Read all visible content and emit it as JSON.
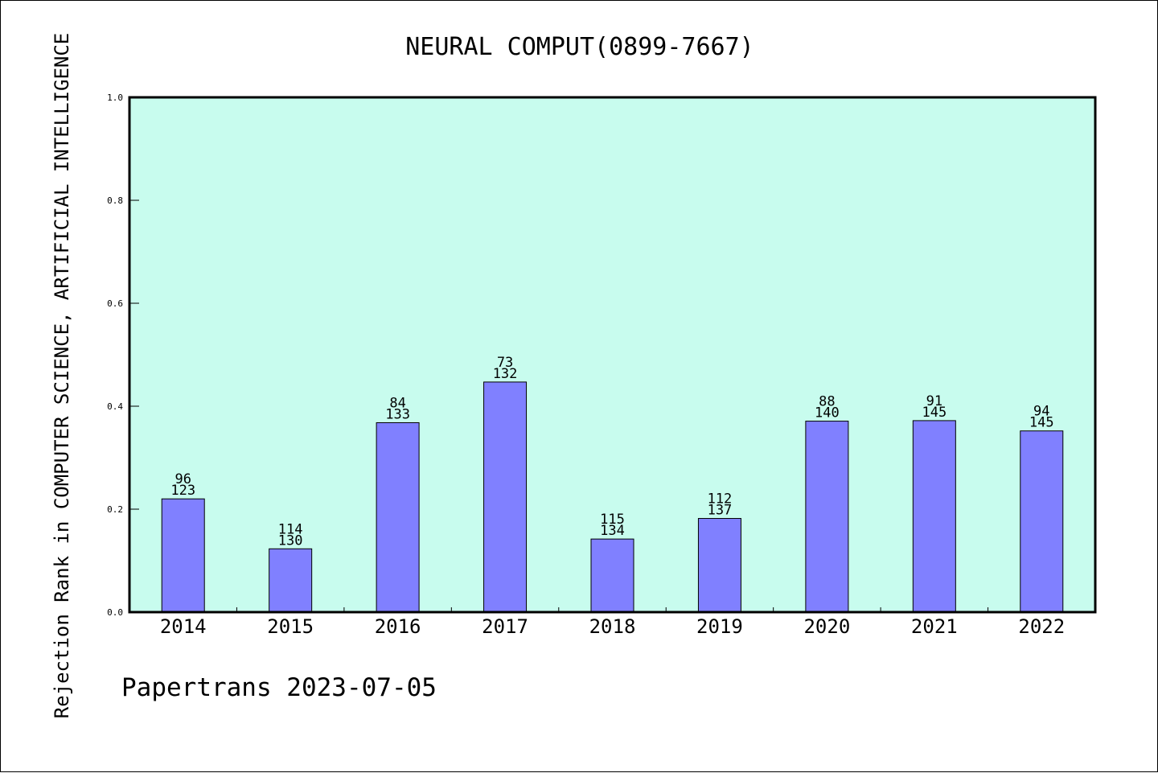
{
  "chart_data": {
    "type": "bar",
    "title": "NEURAL COMPUT(0899-7667)",
    "ylabel": "Rejection Rank in COMPUTER SCIENCE, ARTIFICIAL INTELLIGENCE",
    "xlabel": "",
    "ylim": [
      0,
      1.0
    ],
    "yticks": [
      "0.0",
      "0.2",
      "0.4",
      "0.6",
      "0.8",
      "1.0"
    ],
    "categories": [
      "2014",
      "2015",
      "2016",
      "2017",
      "2018",
      "2019",
      "2020",
      "2021",
      "2022"
    ],
    "values": [
      0.22,
      0.123,
      0.368,
      0.447,
      0.142,
      0.182,
      0.371,
      0.372,
      0.352
    ],
    "rank_labels": [
      "96",
      "114",
      "84",
      "73",
      "115",
      "112",
      "88",
      "91",
      "94"
    ],
    "total_labels": [
      "123",
      "130",
      "133",
      "132",
      "134",
      "137",
      "140",
      "145",
      "145"
    ],
    "grid": false,
    "legend": "none",
    "colors": {
      "plot_bg": "#c8fcee",
      "bar": "#8080ff",
      "bar_edge": "#000000"
    }
  },
  "footer": "Papertrans 2023-07-05"
}
